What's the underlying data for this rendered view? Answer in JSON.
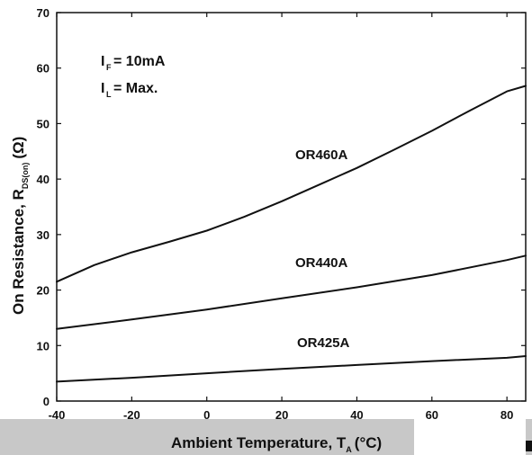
{
  "chart_data": {
    "type": "line",
    "xlabel": "Ambient Temperature, T",
    "xlabel_sub": "A",
    "xlabel_unit": "(°C)",
    "ylabel": "On Resistance, R",
    "ylabel_sub": "DS(on)",
    "ylabel_unit": "(Ω)",
    "xlim": [
      -40,
      85
    ],
    "ylim": [
      0,
      70
    ],
    "x_ticks": [
      -40,
      -20,
      0,
      20,
      40,
      60,
      80
    ],
    "y_ticks": [
      0,
      10,
      20,
      30,
      40,
      50,
      60,
      70
    ],
    "grid": false,
    "annotations": [
      {
        "main": "I",
        "sub": "F",
        "rest": "= 10mA"
      },
      {
        "main": "I",
        "sub": "L",
        "rest": "= Max."
      }
    ],
    "series": [
      {
        "name": "OR460A",
        "x": [
          -40,
          -30,
          -20,
          -10,
          0,
          10,
          20,
          30,
          40,
          50,
          60,
          70,
          80,
          85
        ],
        "y": [
          21.5,
          24.5,
          26.8,
          28.7,
          30.7,
          33.2,
          36.0,
          39.0,
          42.0,
          45.3,
          48.7,
          52.3,
          55.8,
          56.8
        ]
      },
      {
        "name": "OR440A",
        "x": [
          -40,
          -20,
          0,
          20,
          40,
          60,
          80,
          85
        ],
        "y": [
          13.0,
          14.7,
          16.5,
          18.5,
          20.5,
          22.7,
          25.4,
          26.2
        ]
      },
      {
        "name": "OR425A",
        "x": [
          -40,
          -20,
          0,
          20,
          40,
          60,
          80,
          85
        ],
        "y": [
          3.5,
          4.2,
          5.0,
          5.8,
          6.5,
          7.2,
          7.8,
          8.1
        ]
      }
    ]
  }
}
